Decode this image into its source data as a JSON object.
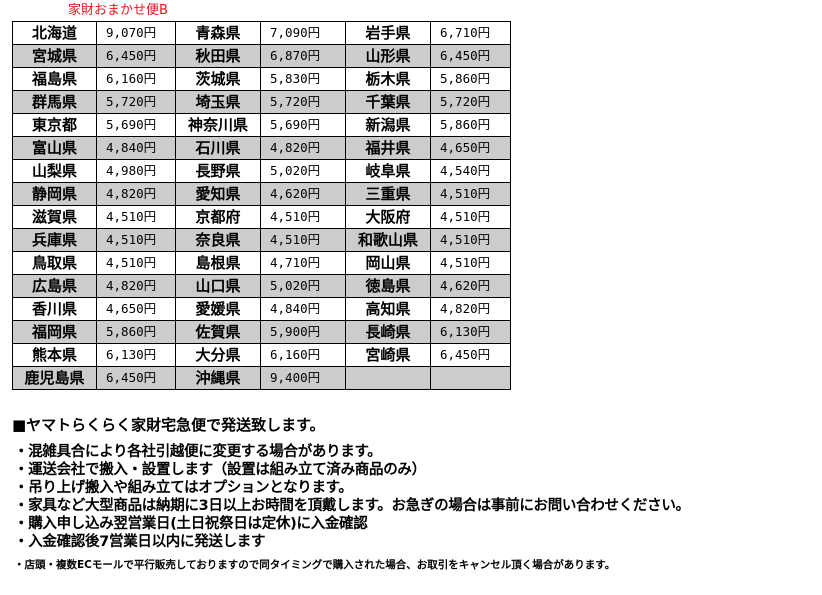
{
  "title": "家財おまかせ便B",
  "table": {
    "rows": [
      [
        [
          "北海道",
          "9,070円"
        ],
        [
          "青森県",
          "7,090円"
        ],
        [
          "岩手県",
          "6,710円"
        ]
      ],
      [
        [
          "宮城県",
          "6,450円"
        ],
        [
          "秋田県",
          "6,870円"
        ],
        [
          "山形県",
          "6,450円"
        ]
      ],
      [
        [
          "福島県",
          "6,160円"
        ],
        [
          "茨城県",
          "5,830円"
        ],
        [
          "栃木県",
          "5,860円"
        ]
      ],
      [
        [
          "群馬県",
          "5,720円"
        ],
        [
          "埼玉県",
          "5,720円"
        ],
        [
          "千葉県",
          "5,720円"
        ]
      ],
      [
        [
          "東京都",
          "5,690円"
        ],
        [
          "神奈川県",
          "5,690円"
        ],
        [
          "新潟県",
          "5,860円"
        ]
      ],
      [
        [
          "富山県",
          "4,840円"
        ],
        [
          "石川県",
          "4,820円"
        ],
        [
          "福井県",
          "4,650円"
        ]
      ],
      [
        [
          "山梨県",
          "4,980円"
        ],
        [
          "長野県",
          "5,020円"
        ],
        [
          "岐阜県",
          "4,540円"
        ]
      ],
      [
        [
          "静岡県",
          "4,820円"
        ],
        [
          "愛知県",
          "4,620円"
        ],
        [
          "三重県",
          "4,510円"
        ]
      ],
      [
        [
          "滋賀県",
          "4,510円"
        ],
        [
          "京都府",
          "4,510円"
        ],
        [
          "大阪府",
          "4,510円"
        ]
      ],
      [
        [
          "兵庫県",
          "4,510円"
        ],
        [
          "奈良県",
          "4,510円"
        ],
        [
          "和歌山県",
          "4,510円"
        ]
      ],
      [
        [
          "鳥取県",
          "4,510円"
        ],
        [
          "島根県",
          "4,710円"
        ],
        [
          "岡山県",
          "4,510円"
        ]
      ],
      [
        [
          "広島県",
          "4,820円"
        ],
        [
          "山口県",
          "5,020円"
        ],
        [
          "徳島県",
          "4,620円"
        ]
      ],
      [
        [
          "香川県",
          "4,650円"
        ],
        [
          "愛媛県",
          "4,840円"
        ],
        [
          "高知県",
          "4,820円"
        ]
      ],
      [
        [
          "福岡県",
          "5,860円"
        ],
        [
          "佐賀県",
          "5,900円"
        ],
        [
          "長崎県",
          "6,130円"
        ]
      ],
      [
        [
          "熊本県",
          "6,130円"
        ],
        [
          "大分県",
          "6,160円"
        ],
        [
          "宮崎県",
          "6,450円"
        ]
      ],
      [
        [
          "鹿児島県",
          "6,450円"
        ],
        [
          "沖縄県",
          "9,400円"
        ],
        [
          "",
          ""
        ]
      ]
    ]
  },
  "heading": "■ヤマトらくらく家財宅急便で発送致します。",
  "bullets": [
    "・混雑具合により各社引越便に変更する場合があります。",
    "・運送会社で搬入・設置します（設置は組み立て済み商品のみ）",
    "・吊り上げ搬入や組み立てはオプションとなります。",
    "・家具など大型商品は納期に3日以上お時間を頂戴します。お急ぎの場合は事前にお問い合わせください。",
    "・購入申し込み翌営業日(土日祝祭日は定休)に入金確認",
    "・入金確認後7営業日以内に発送します"
  ],
  "note": "・店頭・複数ECモールで平行販売しておりますので同タイミングで購入された場合、お取引をキャンセル頂く場合があります。",
  "colors": {
    "title": "#e8141c",
    "row_alt": "#cccccc"
  }
}
